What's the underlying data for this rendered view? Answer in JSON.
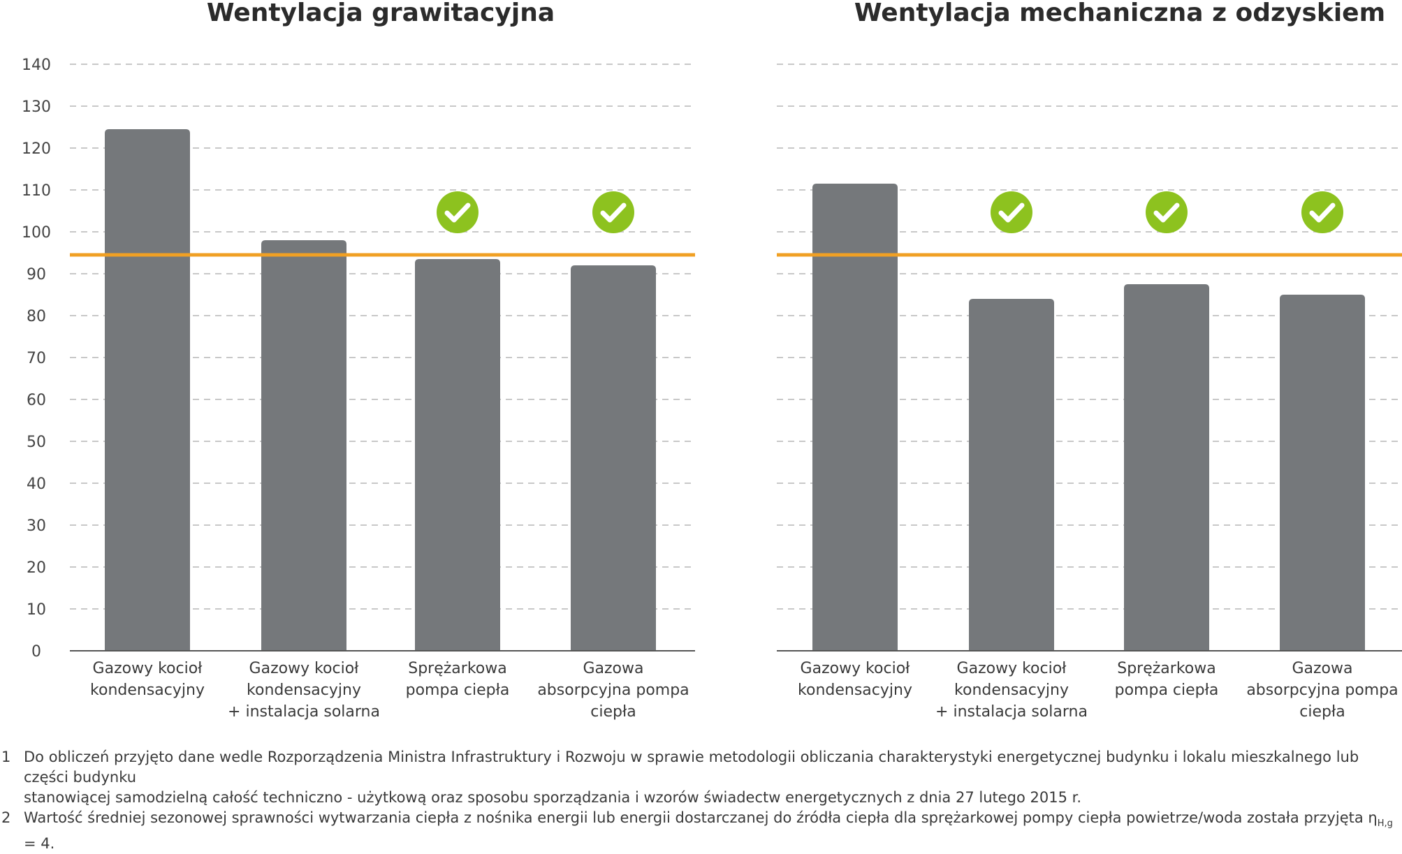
{
  "colors": {
    "bar": "#75787b",
    "threshold": "#f0a024",
    "check": "#8dc21f",
    "grid": "#c8c8c8",
    "axis": "#555555"
  },
  "icons": {
    "pass_marker": "check-circle-icon"
  },
  "chart_data": [
    {
      "type": "bar",
      "title": "Wentylacja grawitacyjna",
      "categories": [
        [
          "Gazowy kocioł",
          "kondensacyjny"
        ],
        [
          "Gazowy kocioł",
          "kondensacyjny",
          "+ instalacja solarna"
        ],
        [
          "Sprężarkowa",
          "pompa ciepła"
        ],
        [
          "Gazowa",
          "absorpcyjna pompa",
          "ciepła"
        ]
      ],
      "values": [
        124.5,
        98,
        93.5,
        92
      ],
      "checkmarks": [
        false,
        false,
        true,
        true
      ],
      "threshold": 94.5,
      "ylim": [
        0,
        140
      ],
      "yticks": [
        0,
        10,
        20,
        30,
        40,
        50,
        60,
        70,
        80,
        90,
        100,
        110,
        120,
        130,
        140
      ],
      "grid": true
    },
    {
      "type": "bar",
      "title": "Wentylacja mechaniczna z odzyskiem",
      "categories": [
        [
          "Gazowy kocioł",
          "kondensacyjny"
        ],
        [
          "Gazowy kocioł",
          "kondensacyjny",
          "+ instalacja solarna"
        ],
        [
          "Sprężarkowa",
          "pompa ciepła"
        ],
        [
          "Gazowa",
          "absorpcyjna pompa",
          "ciepła"
        ]
      ],
      "values": [
        111.5,
        84,
        87.5,
        85
      ],
      "checkmarks": [
        false,
        true,
        true,
        true
      ],
      "threshold": 94.5,
      "ylim": [
        0,
        140
      ],
      "yticks": [],
      "grid": true
    }
  ],
  "footnotes": [
    {
      "num": "1",
      "lines": [
        "Do obliczeń przyjęto dane wedle Rozporządzenia Ministra Infrastruktury i Rozwoju w sprawie metodologii obliczania charakterystyki energetycznej budynku i lokalu mieszkalnego lub części budynku",
        "stanowiącej samodzielną całość techniczno - użytkową oraz sposobu sporządzania i wzorów świadectw energetycznych z dnia 27 lutego 2015 r."
      ]
    },
    {
      "num": "2",
      "text": "Wartość średniej sezonowej sprawności wytwarzania ciepła z nośnika energii lub energii dostarczanej do źródła ciepła dla sprężarkowej pompy ciepła powietrze/woda została przyjęta η",
      "sub": "H,g",
      "suffix": " = 4."
    }
  ]
}
